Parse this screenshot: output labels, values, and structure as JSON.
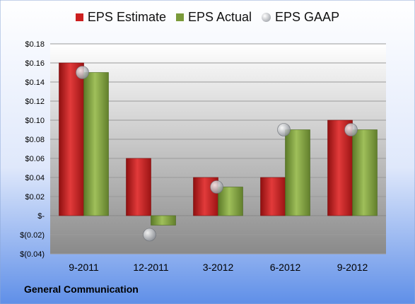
{
  "colors": {
    "estimate": "#cc1f1f",
    "actual": "#7a9a3a",
    "gaap": "#b8bcc2",
    "plot_bg_top": "#ffffff",
    "plot_bg_bottom": "#8a8a8a",
    "frame_top": "#ffffff",
    "frame_bottom": "#5f8fe8"
  },
  "company": "General Communication",
  "chart_data": {
    "type": "bar",
    "categories": [
      "9-2011",
      "12-2011",
      "3-2012",
      "6-2012",
      "9-2012"
    ],
    "series": [
      {
        "name": "EPS Estimate",
        "values": [
          0.16,
          0.06,
          0.04,
          0.04,
          0.1
        ]
      },
      {
        "name": "EPS Actual",
        "values": [
          0.15,
          -0.01,
          0.03,
          0.09,
          0.09
        ]
      },
      {
        "name": "EPS GAAP",
        "type": "scatter",
        "values": [
          0.15,
          -0.02,
          0.03,
          0.09,
          0.09
        ]
      }
    ],
    "ylim": [
      -0.04,
      0.18
    ],
    "yticks": [
      0.18,
      0.16,
      0.14,
      0.12,
      0.1,
      0.08,
      0.06,
      0.04,
      0.02,
      0,
      -0.02,
      -0.04
    ],
    "ytick_labels": [
      "$0.18",
      "$0.16",
      "$0.14",
      "$0.12",
      "$0.10",
      "$0.08",
      "$0.06",
      "$0.04",
      "$0.02",
      "$-",
      "$(0.02)",
      "$(0.04)"
    ],
    "grid": true,
    "legend": "top"
  }
}
